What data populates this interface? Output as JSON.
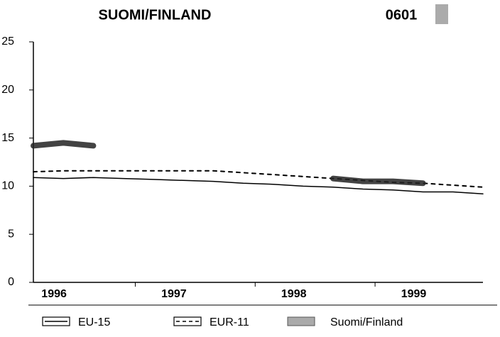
{
  "chart_data": {
    "type": "line",
    "title": "SUOMI/FINLAND",
    "subtitle": "0601",
    "categories": [
      null,
      "1996",
      null,
      null,
      null,
      "1997",
      null,
      null,
      null,
      "1998",
      null,
      null,
      null,
      "1999",
      null,
      null
    ],
    "series": [
      {
        "name": "EU-15",
        "color": "#000000",
        "style": "solid",
        "values": [
          10.9,
          10.8,
          10.9,
          10.8,
          10.7,
          10.6,
          10.5,
          10.3,
          10.2,
          10.0,
          9.9,
          9.7,
          9.6,
          9.4,
          9.4,
          9.2
        ]
      },
      {
        "name": "EUR-11",
        "color": "#000000",
        "style": "dashed",
        "values": [
          11.5,
          11.6,
          11.6,
          11.6,
          11.6,
          11.6,
          11.6,
          11.4,
          11.2,
          11.0,
          10.8,
          10.6,
          10.4,
          10.3,
          10.1,
          9.9
        ]
      },
      {
        "name": "Suomi/Finland",
        "color": "#222222",
        "style": "band",
        "values": [
          14.2,
          14.5,
          14.2,
          null,
          null,
          null,
          null,
          null,
          null,
          null,
          10.8,
          10.5,
          10.5,
          10.3,
          null,
          null
        ]
      }
    ],
    "ylim": [
      0,
      25
    ],
    "yticks": [
      0,
      5,
      10,
      15,
      20,
      25
    ],
    "grid": false
  }
}
